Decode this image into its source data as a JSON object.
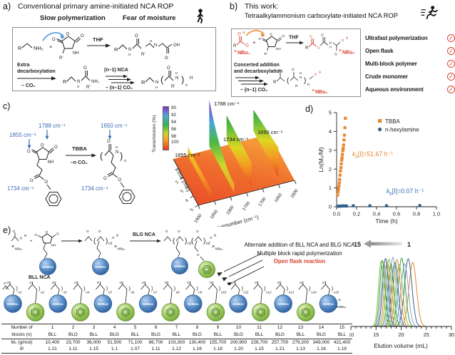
{
  "atoms": {
    "R": "R",
    "Rp": "R'",
    "NH2": "NH₂",
    "NH": "NH",
    "N": "N",
    "H": "H",
    "O": "O",
    "OH": "OH",
    "plus": "+",
    "ominus": "⊖",
    "oplus": "⊕",
    "NBu4": "NBu₄",
    "n": "n"
  },
  "panel_a": {
    "label": "a)",
    "title": "Conventional primary amine-initiated NCA ROP",
    "tag1": "Slow polymerization",
    "tag2": "Fear of moisture",
    "scheme": {
      "reagent": "THF",
      "extra1": "Extra",
      "extra2": "decarboxylation",
      "minus_co2": "– CO₂",
      "n1_nca": "(n–1) NCA",
      "minus_n1_co2": "– (n–1) CO₂"
    }
  },
  "panel_b": {
    "label": "b)",
    "title1": "This work:",
    "title2": "Tetraalkylammonium carboxylate-initiated NCA ROP",
    "scheme": {
      "reagent": "THF",
      "line1": "Concerted addition",
      "line2": "and decarboxylation",
      "minus_n1_co2": "– (n–1) CO₂"
    },
    "checklist": [
      "Ultrafast polymerization",
      "Open flask",
      "Multi-block polymer",
      "Crude monomer",
      "Aqueous environment"
    ],
    "check_glyph": "✓",
    "check_color": "#D6402B"
  },
  "panel_c": {
    "label": "c)",
    "monomer_ir": {
      "c1788": "1788 cm⁻¹",
      "c1855": "1855 cm⁻¹",
      "c1734": "1734 cm⁻¹"
    },
    "polymer_ir": {
      "c1650": "1650 cm⁻¹",
      "c1734": "1734 cm⁻¹"
    },
    "arrow_top": "TBBA",
    "arrow_bottom": "–n CO₂",
    "plot3d": {
      "colorbar_title": "Transmission (%)",
      "colorbar_ticks": [
        "90",
        "92",
        "94",
        "96",
        "98",
        "100"
      ],
      "time_label": "Time (min)",
      "time_ticks": [
        "1",
        "2",
        "3",
        "4",
        "5"
      ],
      "wavenumber_label": "wavenumber (cm⁻¹)",
      "wavenumber_ticks": [
        "1900",
        "1850",
        "1800",
        "1750",
        "1700",
        "1650",
        "1600"
      ],
      "peak_labels": {
        "p1788": "1788 cm⁻¹",
        "p1734": "1734 cm⁻¹",
        "p1650": "1650 cm⁻¹",
        "p1855": "1855 cm⁻¹"
      }
    }
  },
  "panel_d": {
    "label": "d)",
    "xlabel": "Time (h)",
    "ylabel": "Ln(M₀/M)",
    "legend": [
      "TBBA",
      "n-hexylamine"
    ],
    "ann_tbba": {
      "k": "k",
      "sub": "p",
      "rest": "[I]=51.67 h⁻¹"
    },
    "ann_hex": {
      "k": "k",
      "sub": "p",
      "rest": "[I]=0.07 h⁻¹"
    }
  },
  "panel_e": {
    "label": "e)",
    "scheme": {
      "bll_label": "BLL NCA",
      "blg_arrow_label": "BLG NCA",
      "ball_blue_label": "NHBoc",
      "n1": "n1",
      "n2": "n2"
    },
    "notes": {
      "line1": "Alternate addition of BLL NCA and BLG NCA",
      "line2": "Multiple block rapid polymerization",
      "line3": "Open flask reaction"
    },
    "chain": {
      "unit_labels": [
        "n1",
        "n2",
        "n3",
        "n4",
        "n5",
        "n6",
        "n7",
        "n8",
        "n9",
        "n10",
        "n11",
        "n12",
        "n13",
        "n14",
        "n15"
      ],
      "minus": "⊖",
      "end_group": "⊕NBu₄"
    },
    "gpc_labels": {
      "first": "1",
      "last": "15",
      "xlabel": "Elution volume (mL)"
    },
    "table": {
      "header_line1": "Number of",
      "header_line2": "blocks (n)",
      "mn_label": "Mₙ (g/mol)",
      "d_label": "Đ",
      "numbers": [
        "1",
        "2",
        "3",
        "4",
        "5",
        "6",
        "7",
        "8",
        "9",
        "10",
        "11",
        "12",
        "13",
        "14",
        "15"
      ],
      "types": [
        "BLL",
        "BLG",
        "BLL",
        "BLG",
        "BLL",
        "BLG",
        "BLL",
        "BLG",
        "BLL",
        "BLG",
        "BLL",
        "BLG",
        "BLL",
        "BLG",
        "BLL"
      ],
      "mn": [
        "10,400",
        "23,700",
        "36,000",
        "51,500",
        "71,100",
        "86,700",
        "103,300",
        "130,400",
        "155,700",
        "200,900",
        "226,700",
        "257,700",
        "279,200",
        "349,000",
        "421,400"
      ],
      "dispersity": [
        "1.21",
        "1.11",
        "1.15",
        "1.1",
        "1.07",
        "1.11",
        "1.12",
        "1.16",
        "1.18",
        "1.20",
        "1.15",
        "1.21",
        "1.13",
        "1.16",
        "1.19"
      ]
    }
  },
  "chart_data": [
    {
      "id": "kinetics",
      "type": "scatter",
      "xlabel": "Time (h)",
      "ylabel": "Ln(M₀/M)",
      "xlim": [
        0.0,
        1.0
      ],
      "ylim": [
        0,
        5
      ],
      "x_ticks": [
        "0.0",
        "0.2",
        "0.4",
        "0.6",
        "0.8",
        "1.0"
      ],
      "y_ticks": [
        "0",
        "1",
        "2",
        "3",
        "4",
        "5"
      ],
      "grid": false,
      "legend_position": "upper right",
      "series": [
        {
          "name": "TBBA",
          "marker": "square",
          "color": "#E8872F",
          "rate_annotation": "kp[I]=51.67 h⁻¹",
          "x": [
            0.01,
            0.015,
            0.019,
            0.023,
            0.027,
            0.031,
            0.035,
            0.039,
            0.043,
            0.047,
            0.051,
            0.055,
            0.058,
            0.062,
            0.066,
            0.07,
            0.074,
            0.078,
            0.083,
            0.088
          ],
          "y": [
            0.62,
            0.8,
            0.95,
            1.1,
            1.27,
            1.45,
            1.68,
            1.9,
            2.08,
            2.28,
            2.48,
            2.6,
            2.78,
            2.98,
            3.1,
            3.28,
            3.55,
            3.8,
            4.2,
            4.7
          ]
        },
        {
          "name": "n-hexylamine",
          "marker": "circle",
          "color": "#2F618F",
          "rate_annotation": "kp[I]=0.07 h⁻¹",
          "x": [
            0.017,
            0.033,
            0.05,
            0.067,
            0.083,
            0.1,
            0.167,
            0.333,
            0.5,
            0.833
          ],
          "y": [
            0.03,
            0.03,
            0.04,
            0.04,
            0.04,
            0.04,
            0.05,
            0.05,
            0.05,
            0.06
          ]
        }
      ]
    },
    {
      "id": "ftir-3d",
      "type": "heatmap",
      "xlabel": "wavenumber (cm⁻¹)",
      "ylabel": "Time (min)",
      "zlabel": "Transmission (%)",
      "x_range": [
        1900,
        1600
      ],
      "y_range": [
        0,
        5
      ],
      "z_range": [
        90,
        100
      ],
      "x_ticks": [
        1900,
        1850,
        1800,
        1750,
        1700,
        1650,
        1600
      ],
      "y_ticks": [
        1,
        2,
        3,
        4,
        5
      ],
      "z_ticks": [
        90,
        92,
        94,
        96,
        98,
        100
      ],
      "peaks": [
        {
          "label": "1855 cm⁻¹",
          "wavenumber": 1855,
          "trend": "decays over time"
        },
        {
          "label": "1788 cm⁻¹",
          "wavenumber": 1788,
          "trend": "strong, decays over time",
          "min_transmission": 90
        },
        {
          "label": "1734 cm⁻¹",
          "wavenumber": 1734,
          "trend": "persists"
        },
        {
          "label": "1650 cm⁻¹",
          "wavenumber": 1650,
          "trend": "grows over time"
        }
      ]
    },
    {
      "id": "gpc",
      "type": "line",
      "xlabel": "Elution volume (mL)",
      "xlim": [
        10,
        30
      ],
      "x_ticks": [
        10,
        15,
        20,
        25,
        30
      ],
      "annotation": {
        "from": "1",
        "to": "15"
      },
      "colors_cycle": [
        "#E8872F",
        "#35618F",
        "#7FA8CE",
        "#3E9A3E",
        "#8CC34B"
      ],
      "traces": [
        {
          "block": 1,
          "peak_mL": 22.3
        },
        {
          "block": 2,
          "peak_mL": 21.4
        },
        {
          "block": 3,
          "peak_mL": 20.7
        },
        {
          "block": 4,
          "peak_mL": 20.1
        },
        {
          "block": 5,
          "peak_mL": 19.6
        },
        {
          "block": 6,
          "peak_mL": 19.15
        },
        {
          "block": 7,
          "peak_mL": 18.75
        },
        {
          "block": 8,
          "peak_mL": 18.35
        },
        {
          "block": 9,
          "peak_mL": 17.95
        },
        {
          "block": 10,
          "peak_mL": 17.6
        },
        {
          "block": 11,
          "peak_mL": 17.25
        },
        {
          "block": 12,
          "peak_mL": 16.9
        },
        {
          "block": 13,
          "peak_mL": 16.6
        },
        {
          "block": 14,
          "peak_mL": 16.3
        },
        {
          "block": 15,
          "peak_mL": 16.0
        }
      ]
    }
  ]
}
